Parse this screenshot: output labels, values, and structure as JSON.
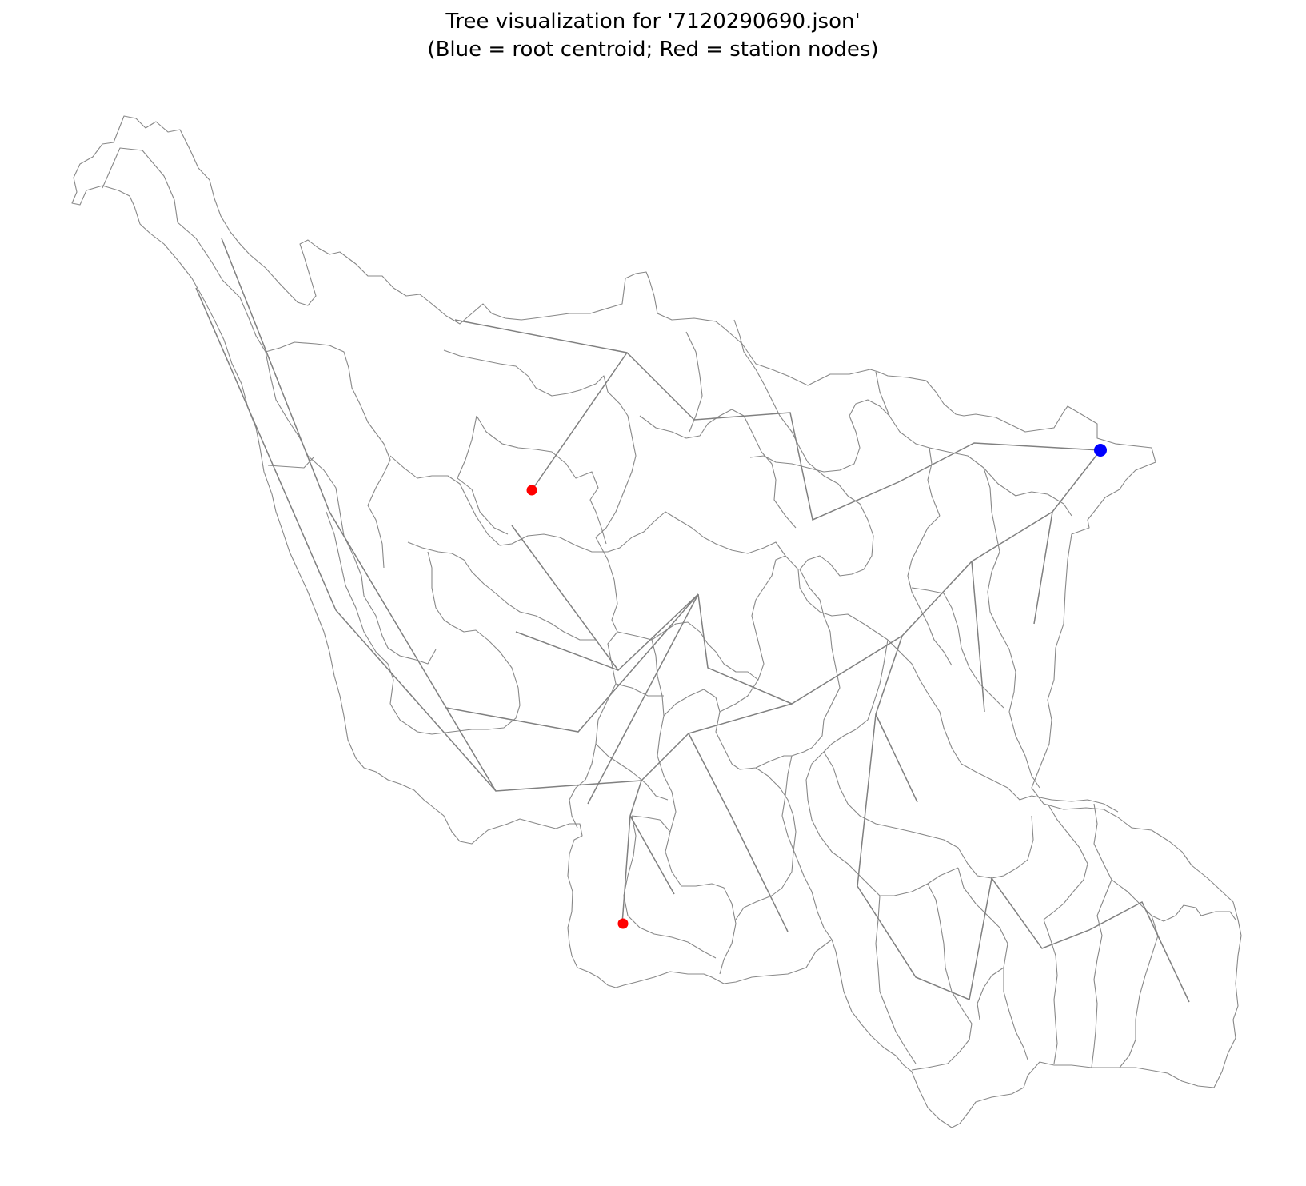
{
  "title": {
    "line1": "Tree visualization for '7120290690.json'",
    "line2": "(Blue = root centroid; Red = station nodes)"
  },
  "colors": {
    "root": "#0000ff",
    "station": "#ff0000",
    "line": "#808080"
  }
}
